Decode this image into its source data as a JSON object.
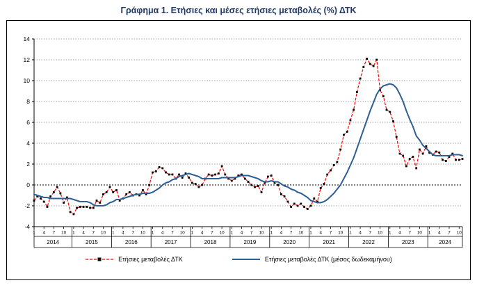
{
  "chart_data": {
    "type": "line",
    "title": "Γράφημα 1. Ετήσιες και μέσες ετήσιες μεταβολές (%) ΔΤΚ",
    "xlabel": "",
    "ylabel": "",
    "ylim": [
      -4,
      14
    ],
    "ytick_step": 2,
    "grid": true,
    "legend_position": "bottom",
    "years": [
      "2014",
      "2015",
      "2016",
      "2017",
      "2018",
      "2019",
      "2020",
      "2021",
      "2022",
      "2023",
      "2024"
    ],
    "month_ticks": [
      1,
      4,
      7,
      10
    ],
    "n_points": 131,
    "colors": {
      "annual_line": "#FF0000",
      "annual_marker": "#000000",
      "average_line": "#2E5F94",
      "grid": "#808080",
      "axis": "#000000"
    },
    "series": [
      {
        "name": "Ετήσιες μεταβολές ΔΤΚ",
        "style": "dashed-with-square-markers",
        "values": [
          -1.5,
          -1.1,
          -1.3,
          -1.6,
          -2.1,
          -1.1,
          -0.7,
          -0.2,
          -0.8,
          -1.7,
          -1.2,
          -2.6,
          -2.8,
          -2.2,
          -2.1,
          -2.1,
          -2.1,
          -2.2,
          -2.2,
          -1.5,
          -1.7,
          -0.9,
          -0.7,
          -0.2,
          -0.7,
          -0.5,
          -1.5,
          -1.3,
          -0.9,
          -0.7,
          -1.0,
          -0.9,
          -1.0,
          -0.5,
          -0.9,
          0.0,
          1.2,
          1.3,
          1.7,
          1.6,
          1.2,
          1.0,
          1.0,
          0.6,
          1.0,
          0.7,
          1.1,
          0.7,
          0.2,
          0.1,
          -0.2,
          0.0,
          0.6,
          1.0,
          0.9,
          1.0,
          1.1,
          1.8,
          1.0,
          0.6,
          0.4,
          0.6,
          0.9,
          1.0,
          0.6,
          0.3,
          0.0,
          -0.2,
          -0.1,
          -0.7,
          0.2,
          0.8,
          0.9,
          0.2,
          0.0,
          -0.9,
          -1.1,
          -1.6,
          -2.1,
          -1.8,
          -2.0,
          -1.8,
          -2.1,
          -2.3,
          -2.0,
          -1.3,
          -1.6,
          -0.3,
          0.1,
          1.0,
          1.4,
          1.9,
          2.2,
          3.4,
          4.8,
          5.1,
          6.2,
          7.2,
          8.9,
          10.2,
          11.3,
          12.1,
          11.6,
          11.4,
          12.0,
          9.1,
          8.5,
          7.2,
          7.0,
          6.1,
          4.6,
          3.0,
          2.8,
          1.8,
          2.5,
          2.7,
          1.6,
          3.4,
          3.0,
          3.7,
          3.1,
          2.9,
          3.2,
          3.1,
          2.4,
          2.3,
          2.7,
          3.0,
          2.4,
          2.4,
          2.5
        ]
      },
      {
        "name": "Ετήσιες μεταβολές ΔΤΚ (μέσος δωδεκαμήνου)",
        "style": "solid",
        "values": [
          -0.9,
          -1.0,
          -1.1,
          -1.2,
          -1.2,
          -1.3,
          -1.3,
          -1.3,
          -1.3,
          -1.3,
          -1.3,
          -1.3,
          -1.4,
          -1.5,
          -1.6,
          -1.6,
          -1.6,
          -1.7,
          -1.9,
          -2.0,
          -2.0,
          -2.0,
          -1.9,
          -1.7,
          -1.6,
          -1.4,
          -1.4,
          -1.3,
          -1.2,
          -1.1,
          -1.0,
          -0.9,
          -0.9,
          -0.8,
          -0.8,
          -0.8,
          -0.7,
          -0.5,
          -0.3,
          0.0,
          0.2,
          0.3,
          0.5,
          0.6,
          0.8,
          0.9,
          1.0,
          1.1,
          1.0,
          0.9,
          0.8,
          0.6,
          0.6,
          0.6,
          0.6,
          0.6,
          0.6,
          0.7,
          0.7,
          0.7,
          0.7,
          0.7,
          0.8,
          0.9,
          0.9,
          0.9,
          0.8,
          0.7,
          0.6,
          0.4,
          0.3,
          0.3,
          0.4,
          0.3,
          0.3,
          0.1,
          -0.1,
          -0.2,
          -0.4,
          -0.5,
          -0.7,
          -0.8,
          -1.0,
          -1.2,
          -1.5,
          -1.6,
          -1.7,
          -1.7,
          -1.6,
          -1.4,
          -1.1,
          -0.8,
          -0.4,
          0.0,
          0.6,
          1.2,
          1.9,
          2.6,
          3.5,
          4.4,
          5.3,
          6.2,
          7.1,
          7.9,
          8.7,
          9.2,
          9.5,
          9.6,
          9.7,
          9.6,
          9.3,
          8.7,
          8.0,
          7.1,
          6.3,
          5.6,
          4.7,
          4.3,
          3.8,
          3.5,
          3.2,
          2.9,
          2.8,
          2.8,
          2.8,
          2.8,
          2.8,
          2.9,
          2.9,
          2.9,
          2.8
        ]
      }
    ]
  }
}
